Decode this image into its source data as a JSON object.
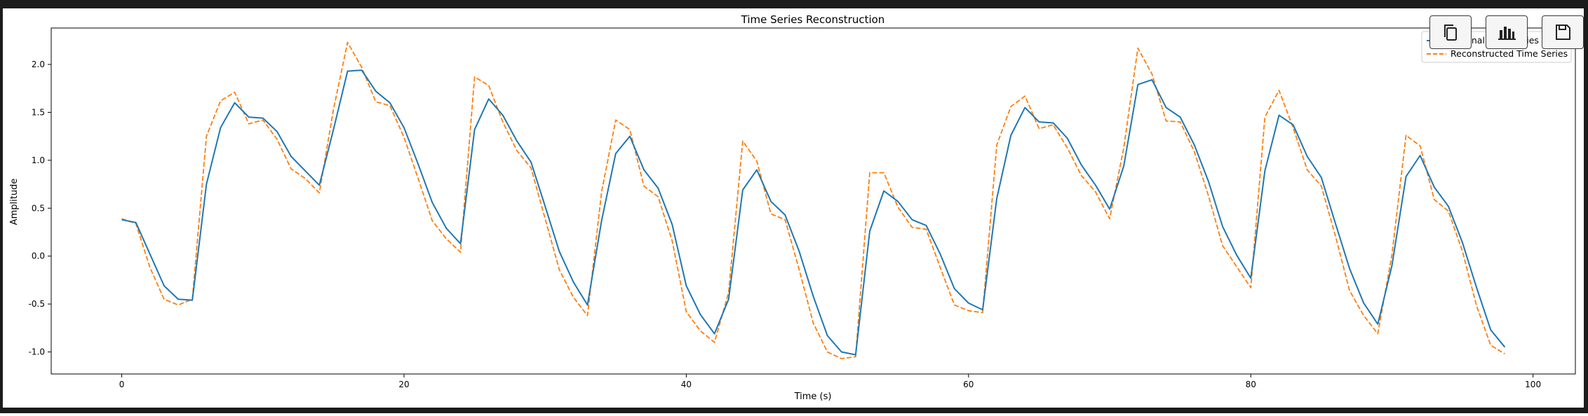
{
  "toolbar": {
    "copy_icon": "copy-icon",
    "chart_icon": "bar-chart-icon",
    "save_icon": "save-icon"
  },
  "colors": {
    "frame": "#1c1c1c",
    "original": "#1f77b4",
    "reconstructed": "#ff7f0e"
  },
  "chart_data": {
    "type": "line",
    "title": "Time Series Reconstruction",
    "xlabel": "Time (s)",
    "ylabel": "Amplitude",
    "xlim": [
      -5,
      103
    ],
    "ylim": [
      -1.23,
      2.38
    ],
    "xticks": [
      0,
      20,
      40,
      60,
      80,
      100
    ],
    "xtick_labels": [
      "0",
      "20",
      "40",
      "60",
      "80",
      "100"
    ],
    "yticks": [
      -1.0,
      -0.5,
      0.0,
      0.5,
      1.0,
      1.5,
      2.0
    ],
    "ytick_labels": [
      "-1.0",
      "-0.5",
      "0.0",
      "0.5",
      "1.0",
      "1.5",
      "2.0"
    ],
    "grid": false,
    "legend_position": "top-right",
    "x": [
      0,
      1,
      2,
      3,
      4,
      5,
      6,
      7,
      8,
      9,
      10,
      11,
      12,
      13,
      14,
      15,
      16,
      17,
      18,
      19,
      20,
      21,
      22,
      23,
      24,
      25,
      26,
      27,
      28,
      29,
      30,
      31,
      32,
      33,
      34,
      35,
      36,
      37,
      38,
      39,
      40,
      41,
      42,
      43,
      44,
      45,
      46,
      47,
      48,
      49,
      50,
      51,
      52,
      53,
      54,
      55,
      56,
      57,
      58,
      59,
      60,
      61,
      62,
      63,
      64,
      65,
      66,
      67,
      68,
      69,
      70,
      71,
      72,
      73,
      74,
      75,
      76,
      77,
      78,
      79,
      80,
      81,
      82,
      83,
      84,
      85,
      86,
      87,
      88,
      89,
      90,
      91,
      92,
      93,
      94,
      95,
      96,
      97,
      98
    ],
    "series": [
      {
        "name": "Original Time Series",
        "style": "solid",
        "values": [
          0.38,
          0.35,
          0.02,
          -0.31,
          -0.45,
          -0.46,
          0.75,
          1.34,
          1.6,
          1.45,
          1.44,
          1.3,
          1.04,
          0.89,
          0.74,
          1.32,
          1.93,
          1.94,
          1.72,
          1.6,
          1.34,
          0.96,
          0.56,
          0.29,
          0.13,
          1.32,
          1.64,
          1.47,
          1.2,
          0.98,
          0.52,
          0.05,
          -0.27,
          -0.51,
          0.37,
          1.07,
          1.25,
          0.9,
          0.71,
          0.33,
          -0.31,
          -0.61,
          -0.81,
          -0.45,
          0.69,
          0.9,
          0.57,
          0.43,
          0.05,
          -0.42,
          -0.83,
          -1.0,
          -1.03,
          0.26,
          0.68,
          0.57,
          0.38,
          0.32,
          0.02,
          -0.34,
          -0.49,
          -0.56,
          0.6,
          1.26,
          1.55,
          1.4,
          1.39,
          1.23,
          0.95,
          0.74,
          0.49,
          0.94,
          1.79,
          1.84,
          1.55,
          1.45,
          1.16,
          0.78,
          0.31,
          0.01,
          -0.23,
          0.89,
          1.47,
          1.37,
          1.04,
          0.82,
          0.34,
          -0.13,
          -0.49,
          -0.71,
          -0.1,
          0.83,
          1.05,
          0.72,
          0.52,
          0.14,
          -0.33,
          -0.77,
          -0.95
        ]
      },
      {
        "name": "Reconstructed Time Series",
        "style": "dashed",
        "values": [
          0.39,
          0.34,
          -0.12,
          -0.45,
          -0.51,
          -0.45,
          1.25,
          1.62,
          1.71,
          1.38,
          1.42,
          1.22,
          0.91,
          0.81,
          0.66,
          1.53,
          2.23,
          1.97,
          1.61,
          1.57,
          1.24,
          0.81,
          0.37,
          0.18,
          0.04,
          1.87,
          1.78,
          1.4,
          1.1,
          0.92,
          0.39,
          -0.14,
          -0.43,
          -0.62,
          0.67,
          1.42,
          1.32,
          0.73,
          0.62,
          0.16,
          -0.58,
          -0.78,
          -0.9,
          -0.38,
          1.2,
          0.99,
          0.44,
          0.38,
          -0.14,
          -0.7,
          -1.0,
          -1.07,
          -1.05,
          0.87,
          0.87,
          0.51,
          0.3,
          0.28,
          -0.12,
          -0.51,
          -0.57,
          -0.59,
          1.16,
          1.56,
          1.67,
          1.33,
          1.37,
          1.13,
          0.84,
          0.67,
          0.39,
          1.13,
          2.17,
          1.9,
          1.41,
          1.4,
          1.09,
          0.63,
          0.11,
          -0.11,
          -0.33,
          1.45,
          1.73,
          1.34,
          0.9,
          0.73,
          0.21,
          -0.36,
          -0.62,
          -0.81,
          0.01,
          1.26,
          1.15,
          0.59,
          0.47,
          0.05,
          -0.52,
          -0.93,
          -1.02
        ]
      }
    ]
  }
}
